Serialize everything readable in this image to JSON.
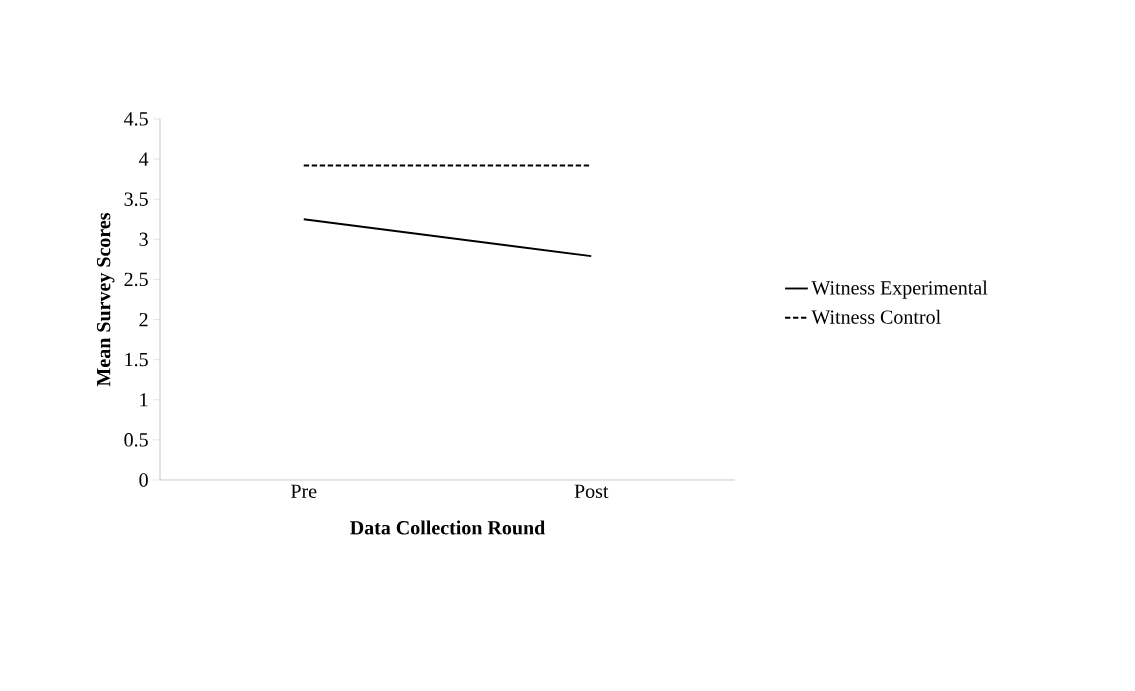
{
  "chart_data": {
    "type": "line",
    "xlabel": "Data Collection Round",
    "ylabel": "Mean Survey Scores",
    "categories": [
      "Pre",
      "Post"
    ],
    "series": [
      {
        "name": "Witness Experimental",
        "color": "#000000",
        "line_style": "solid",
        "values": [
          3.25,
          2.79
        ]
      },
      {
        "name": "Witness Control",
        "color": "#000000",
        "line_style": "dashed",
        "values": [
          3.92,
          3.92
        ]
      }
    ],
    "ylim": [
      0,
      4.5
    ],
    "yticks": [
      0,
      0.5,
      1,
      1.5,
      2,
      2.5,
      3,
      3.5,
      4,
      4.5
    ],
    "grid": false,
    "legend": "right",
    "marker": "none"
  }
}
